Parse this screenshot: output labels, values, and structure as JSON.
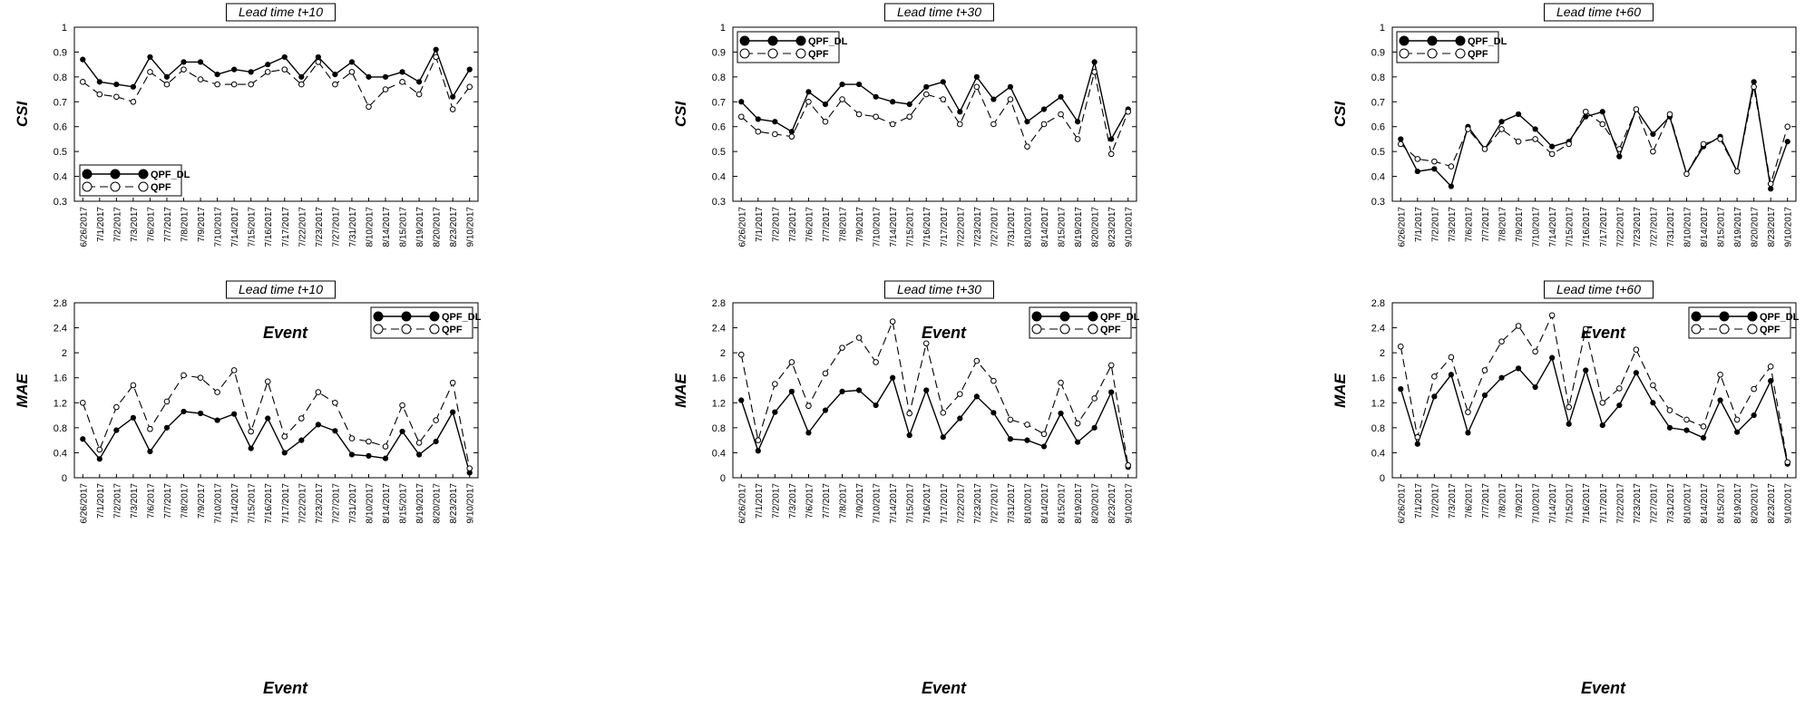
{
  "chart_data": [
    {
      "type": "line",
      "title": "Lead time t+10",
      "xlabel": "Event",
      "ylabel": "CSI",
      "ylim": [
        0.3,
        1
      ],
      "yticks": [
        "0.3",
        "0.4",
        "0.5",
        "0.6",
        "0.7",
        "0.8",
        "0.9",
        "1"
      ],
      "categories": [
        "6/26/2017",
        "7/1/2017",
        "7/2/2017",
        "7/3/2017",
        "7/6/2017",
        "7/7/2017",
        "7/8/2017",
        "7/9/2017",
        "7/10/2017",
        "7/14/2017",
        "7/15/2017",
        "7/16/2017",
        "7/17/2017",
        "7/22/2017",
        "7/23/2017",
        "7/27/2017",
        "7/31/2017",
        "8/10/2017",
        "8/14/2017",
        "8/15/2017",
        "8/19/2017",
        "8/20/2017",
        "8/23/2017",
        "9/10/2017"
      ],
      "legend_position": "bottom-left",
      "series": [
        {
          "name": "QPF_DL",
          "style": "solid",
          "values": [
            0.87,
            0.78,
            0.77,
            0.76,
            0.88,
            0.8,
            0.86,
            0.86,
            0.81,
            0.83,
            0.82,
            0.85,
            0.88,
            0.8,
            0.88,
            0.81,
            0.86,
            0.8,
            0.8,
            0.82,
            0.78,
            0.91,
            0.72,
            0.83
          ]
        },
        {
          "name": "QPF",
          "style": "dashed",
          "values": [
            0.78,
            0.73,
            0.72,
            0.7,
            0.82,
            0.77,
            0.83,
            0.79,
            0.77,
            0.77,
            0.77,
            0.82,
            0.83,
            0.77,
            0.86,
            0.77,
            0.82,
            0.68,
            0.75,
            0.78,
            0.73,
            0.88,
            0.67,
            0.76
          ]
        }
      ]
    },
    {
      "type": "line",
      "title": "Lead time t+30",
      "xlabel": "Event",
      "ylabel": "CSI",
      "ylim": [
        0.3,
        1
      ],
      "yticks": [
        "0.3",
        "0.4",
        "0.5",
        "0.6",
        "0.7",
        "0.8",
        "0.9",
        "1"
      ],
      "categories": [
        "6/26/2017",
        "7/1/2017",
        "7/2/2017",
        "7/3/2017",
        "7/6/2017",
        "7/7/2017",
        "7/8/2017",
        "7/9/2017",
        "7/10/2017",
        "7/14/2017",
        "7/15/2017",
        "7/16/2017",
        "7/17/2017",
        "7/22/2017",
        "7/23/2017",
        "7/27/2017",
        "7/31/2017",
        "8/10/2017",
        "8/14/2017",
        "8/15/2017",
        "8/19/2017",
        "8/20/2017",
        "8/23/2017",
        "9/10/2017"
      ],
      "legend_position": "top-left",
      "series": [
        {
          "name": "QPF_DL",
          "style": "solid",
          "values": [
            0.7,
            0.63,
            0.62,
            0.58,
            0.74,
            0.69,
            0.77,
            0.77,
            0.72,
            0.7,
            0.69,
            0.76,
            0.78,
            0.66,
            0.8,
            0.71,
            0.76,
            0.62,
            0.67,
            0.72,
            0.62,
            0.86,
            0.55,
            0.67
          ]
        },
        {
          "name": "QPF",
          "style": "dashed",
          "values": [
            0.64,
            0.58,
            0.57,
            0.56,
            0.7,
            0.62,
            0.71,
            0.65,
            0.64,
            0.61,
            0.64,
            0.73,
            0.71,
            0.61,
            0.76,
            0.61,
            0.71,
            0.52,
            0.61,
            0.65,
            0.55,
            0.82,
            0.49,
            0.66
          ]
        }
      ]
    },
    {
      "type": "line",
      "title": "Lead time t+60",
      "xlabel": "Event",
      "ylabel": "CSI",
      "ylim": [
        0.3,
        1
      ],
      "yticks": [
        "0.3",
        "0.4",
        "0.5",
        "0.6",
        "0.7",
        "0.8",
        "0.9",
        "1"
      ],
      "categories": [
        "6/26/2017",
        "7/1/2017",
        "7/2/2017",
        "7/3/2017",
        "7/6/2017",
        "7/7/2017",
        "7/8/2017",
        "7/9/2017",
        "7/10/2017",
        "7/14/2017",
        "7/15/2017",
        "7/16/2017",
        "7/17/2017",
        "7/22/2017",
        "7/23/2017",
        "7/27/2017",
        "7/31/2017",
        "8/10/2017",
        "8/14/2017",
        "8/15/2017",
        "8/19/2017",
        "8/20/2017",
        "8/23/2017",
        "9/10/2017"
      ],
      "legend_position": "top-left",
      "series": [
        {
          "name": "QPF_DL",
          "style": "solid",
          "values": [
            0.55,
            0.42,
            0.43,
            0.36,
            0.6,
            0.51,
            0.62,
            0.65,
            0.59,
            0.52,
            0.54,
            0.64,
            0.66,
            0.48,
            0.67,
            0.57,
            0.64,
            0.41,
            0.52,
            0.56,
            0.42,
            0.78,
            0.35,
            0.54
          ]
        },
        {
          "name": "QPF",
          "style": "dashed",
          "values": [
            0.53,
            0.47,
            0.46,
            0.44,
            0.59,
            0.51,
            0.59,
            0.54,
            0.55,
            0.49,
            0.53,
            0.66,
            0.61,
            0.51,
            0.67,
            0.5,
            0.65,
            0.41,
            0.53,
            0.55,
            0.42,
            0.76,
            0.37,
            0.6
          ]
        }
      ]
    },
    {
      "type": "line",
      "title": "Lead time t+10",
      "xlabel": "Event",
      "ylabel": "MAE",
      "ylim": [
        0,
        2.8
      ],
      "yticks": [
        "0",
        "0.4",
        "0.8",
        "1.2",
        "1.6",
        "2",
        "2.4",
        "2.8"
      ],
      "categories": [
        "6/26/2017",
        "7/1/2017",
        "7/2/2017",
        "7/3/2017",
        "7/6/2017",
        "7/7/2017",
        "7/8/2017",
        "7/9/2017",
        "7/10/2017",
        "7/14/2017",
        "7/15/2017",
        "7/16/2017",
        "7/17/2017",
        "7/22/2017",
        "7/23/2017",
        "7/27/2017",
        "7/31/2017",
        "8/10/2017",
        "8/14/2017",
        "8/15/2017",
        "8/19/2017",
        "8/20/2017",
        "8/23/2017",
        "9/10/2017"
      ],
      "legend_position": "top-right",
      "series": [
        {
          "name": "QPF_DL",
          "style": "solid",
          "values": [
            0.62,
            0.3,
            0.76,
            0.96,
            0.42,
            0.8,
            1.06,
            1.03,
            0.92,
            1.02,
            0.47,
            0.95,
            0.4,
            0.6,
            0.85,
            0.75,
            0.37,
            0.35,
            0.31,
            0.74,
            0.37,
            0.58,
            1.05,
            0.08
          ]
        },
        {
          "name": "QPF",
          "style": "dashed",
          "values": [
            1.2,
            0.45,
            1.13,
            1.48,
            0.78,
            1.22,
            1.64,
            1.6,
            1.37,
            1.72,
            0.74,
            1.54,
            0.66,
            0.95,
            1.37,
            1.2,
            0.63,
            0.58,
            0.5,
            1.16,
            0.56,
            0.92,
            1.52,
            0.15
          ]
        }
      ]
    },
    {
      "type": "line",
      "title": "Lead time t+30",
      "xlabel": "Event",
      "ylabel": "MAE",
      "ylim": [
        0,
        2.8
      ],
      "yticks": [
        "0",
        "0.4",
        "0.8",
        "1.2",
        "1.6",
        "2",
        "2.4",
        "2.8"
      ],
      "categories": [
        "6/26/2017",
        "7/1/2017",
        "7/2/2017",
        "7/3/2017",
        "7/6/2017",
        "7/7/2017",
        "7/8/2017",
        "7/9/2017",
        "7/10/2017",
        "7/14/2017",
        "7/15/2017",
        "7/16/2017",
        "7/17/2017",
        "7/22/2017",
        "7/23/2017",
        "7/27/2017",
        "7/31/2017",
        "8/10/2017",
        "8/14/2017",
        "8/15/2017",
        "8/19/2017",
        "8/20/2017",
        "8/23/2017",
        "9/10/2017"
      ],
      "legend_position": "top-right",
      "series": [
        {
          "name": "QPF_DL",
          "style": "solid",
          "values": [
            1.24,
            0.43,
            1.05,
            1.38,
            0.72,
            1.08,
            1.38,
            1.4,
            1.16,
            1.6,
            0.68,
            1.4,
            0.65,
            0.95,
            1.3,
            1.04,
            0.62,
            0.6,
            0.5,
            1.03,
            0.57,
            0.8,
            1.37,
            0.17
          ]
        },
        {
          "name": "QPF",
          "style": "dashed",
          "values": [
            1.97,
            0.6,
            1.5,
            1.85,
            1.15,
            1.67,
            2.08,
            2.24,
            1.85,
            2.5,
            1.03,
            2.15,
            1.04,
            1.34,
            1.87,
            1.55,
            0.93,
            0.85,
            0.7,
            1.52,
            0.87,
            1.27,
            1.8,
            0.2
          ]
        }
      ]
    },
    {
      "type": "line",
      "title": "Lead time t+60",
      "xlabel": "Event",
      "ylabel": "MAE",
      "ylim": [
        0,
        2.8
      ],
      "yticks": [
        "0",
        "0.4",
        "0.8",
        "1.2",
        "1.6",
        "2",
        "2.4",
        "2.8"
      ],
      "categories": [
        "6/26/2017",
        "7/1/2017",
        "7/2/2017",
        "7/3/2017",
        "7/6/2017",
        "7/7/2017",
        "7/8/2017",
        "7/9/2017",
        "7/10/2017",
        "7/14/2017",
        "7/15/2017",
        "7/16/2017",
        "7/17/2017",
        "7/22/2017",
        "7/23/2017",
        "7/27/2017",
        "7/31/2017",
        "8/10/2017",
        "8/14/2017",
        "8/15/2017",
        "8/19/2017",
        "8/20/2017",
        "8/23/2017",
        "9/10/2017"
      ],
      "legend_position": "top-right",
      "series": [
        {
          "name": "QPF_DL",
          "style": "solid",
          "values": [
            1.42,
            0.54,
            1.3,
            1.65,
            0.72,
            1.32,
            1.6,
            1.75,
            1.45,
            1.92,
            0.86,
            1.72,
            0.84,
            1.16,
            1.68,
            1.2,
            0.8,
            0.76,
            0.64,
            1.24,
            0.73,
            1.0,
            1.55,
            0.22
          ]
        },
        {
          "name": "QPF",
          "style": "dashed",
          "values": [
            2.1,
            0.65,
            1.62,
            1.93,
            1.05,
            1.72,
            2.18,
            2.43,
            2.02,
            2.6,
            1.13,
            2.38,
            1.2,
            1.43,
            2.05,
            1.48,
            1.08,
            0.93,
            0.82,
            1.65,
            0.93,
            1.42,
            1.78,
            0.25
          ]
        }
      ]
    }
  ]
}
